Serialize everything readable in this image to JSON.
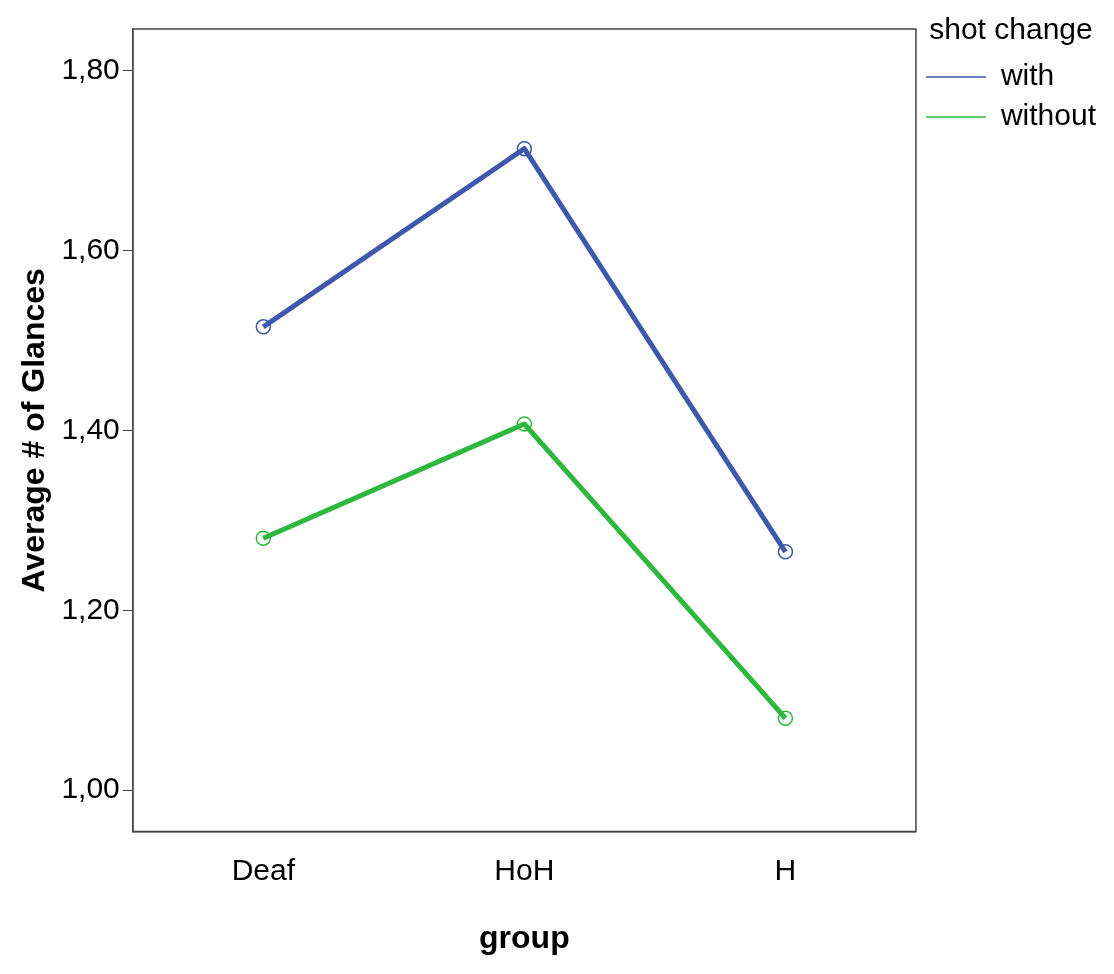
{
  "chart_data": {
    "type": "line",
    "xlabel": "group",
    "ylabel": "Average # of Glances",
    "legend_title": "shot change",
    "categories": [
      "Deaf",
      "HoH",
      "H"
    ],
    "series": [
      {
        "name": "with",
        "color": "#3e58ac",
        "values": [
          1.515,
          1.713,
          1.265
        ]
      },
      {
        "name": "without",
        "color": "#2db83d",
        "values": [
          1.28,
          1.407,
          1.08
        ]
      }
    ],
    "ylim": [
      0.954,
      1.846
    ],
    "yticks": [
      {
        "value": 1.0,
        "label": "1,00"
      },
      {
        "value": 1.2,
        "label": "1,20"
      },
      {
        "value": 1.4,
        "label": "1,40"
      },
      {
        "value": 1.6,
        "label": "1,60"
      },
      {
        "value": 1.8,
        "label": "1,80"
      }
    ],
    "grid": false,
    "legend": "right",
    "marker": "circle",
    "line_style": "solid"
  }
}
